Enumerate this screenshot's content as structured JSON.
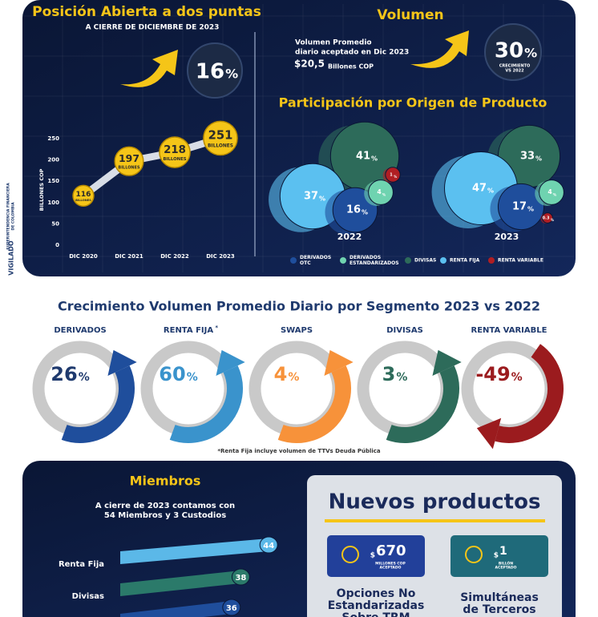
{
  "sidebar": {
    "vigilado": "VIGILADO",
    "entity": [
      "SUPERINTENDENCIA FINANCIERA",
      "DE COLOMBIA"
    ]
  },
  "posicion": {
    "title": "Posición Abierta a dos puntas",
    "subtitle": "A CIERRE DE DICIEMBRE DE 2023",
    "growth": 16,
    "growth_unit": "%",
    "chart": {
      "type": "line",
      "y_label": "BILLONES COP",
      "ylim": [
        0,
        250
      ],
      "yticks": [
        0,
        50,
        100,
        150,
        200,
        250
      ],
      "categories": [
        "DIC 2020",
        "DIC 2021",
        "DIC 2022",
        "DIC 2023"
      ],
      "values": [
        116,
        197,
        218,
        251
      ],
      "value_unit": "BILLONES",
      "color": "#f5c518"
    }
  },
  "volumen": {
    "title": "Volumen",
    "description": [
      "Volumen Promedio",
      "diario aceptado en Dic 2023"
    ],
    "amount": "$20,5",
    "amount_unit": "Billones COP",
    "growth": 30,
    "growth_unit": "%",
    "growth_label": [
      "CRECIMIENTO",
      "VS 2022"
    ]
  },
  "participacion": {
    "title": "Participación por Origen de Producto",
    "unit": "%",
    "legend": [
      {
        "name": [
          "DERIVADOS",
          "OTC"
        ],
        "color": "#1f4e9c"
      },
      {
        "name": [
          "DERIVADOS",
          "ESTANDARIZADOS"
        ],
        "color": "#6fd3b0"
      },
      {
        "name": [
          "DIVISAS"
        ],
        "color": "#2d6b5a"
      },
      {
        "name": [
          "RENTA FIJA"
        ],
        "color": "#5bc0f0"
      },
      {
        "name": [
          "RENTA VARIABLE"
        ],
        "color": "#b01e23"
      }
    ],
    "years": [
      {
        "year": "2022",
        "values": [
          16,
          4,
          41,
          37,
          1
        ]
      },
      {
        "year": "2023",
        "values": [
          17,
          4,
          33,
          47,
          0.3
        ]
      }
    ]
  },
  "crecimiento": {
    "title": "Crecimiento Volumen Promedio Diario por Segmento 2023 vs 2022",
    "unit": "%",
    "segments": [
      {
        "name": "DERIVADOS",
        "value": 26,
        "color": "#1f4e9c"
      },
      {
        "name": "RENTA FIJA",
        "mark": "*",
        "value": 60,
        "color": "#3a93cc"
      },
      {
        "name": "SWAPS",
        "value": 4,
        "color": "#f7923a"
      },
      {
        "name": "DIVISAS",
        "value": 3,
        "color": "#2d6b5a"
      },
      {
        "name": "RENTA VARIABLE",
        "value": -49,
        "color": "#9b1b1e"
      }
    ],
    "footnote": "*Renta Fija incluye volumen de TTVs Deuda Pública"
  },
  "miembros": {
    "title": "Miembros",
    "text": [
      "A cierre de 2023 contamos con",
      "54 Miembros y 3 Custodios"
    ],
    "bars": [
      {
        "name": "Renta Fija",
        "value": 44,
        "color": "#5bb8e8"
      },
      {
        "name": "Divisas",
        "value": 38,
        "color": "#2b7a6a"
      },
      {
        "name": null,
        "value": 36,
        "color": "#1f4e9c"
      }
    ]
  },
  "nuevos": {
    "title": "Nuevos productos",
    "products": [
      {
        "currency": "$",
        "amount": "670",
        "amount_label": [
          "MILLONES COP",
          "ACEPTADO"
        ],
        "name": [
          "Opciones No",
          "Estandarizadas",
          "Sobre TRM"
        ],
        "color": "#22409a"
      },
      {
        "currency": "$",
        "amount": "1",
        "amount_label": [
          "BILLÓN",
          "ACEPTADO"
        ],
        "name": [
          "Simultáneas",
          "de Terceros"
        ],
        "color": "#1f6a7a"
      }
    ]
  }
}
